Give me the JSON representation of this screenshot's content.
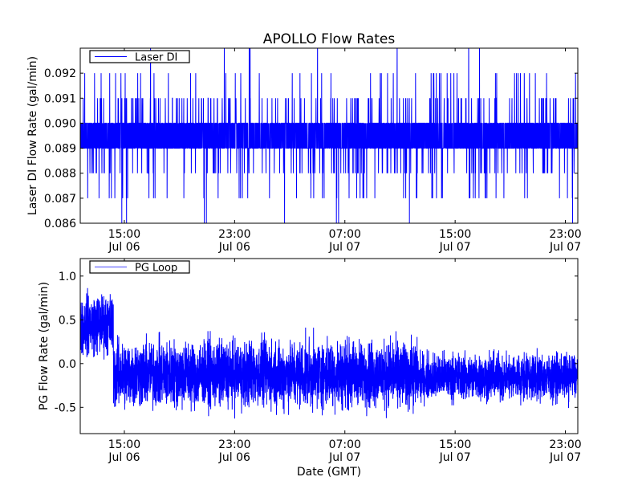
{
  "title": "APOLLO Flow Rates",
  "xlabel": "Date (GMT)",
  "colors": {
    "line": "#0000ff",
    "legend_pg": "#8080ff",
    "frame": "#000000"
  },
  "chart_data": [
    {
      "type": "line",
      "ylabel": "Laser DI Flow Rate (gal/min)",
      "legend": "Laser DI",
      "legend_position": "top-left",
      "ylim": [
        0.086,
        0.093
      ],
      "yticks": [
        0.086,
        0.087,
        0.088,
        0.089,
        0.09,
        0.091,
        0.092
      ],
      "ytick_labels": [
        "0.086",
        "0.087",
        "0.088",
        "0.089",
        "0.090",
        "0.091",
        "0.092"
      ],
      "x_unit": "hours since Jul 06 00:00 GMT",
      "xlim": [
        11.8,
        47.9
      ],
      "xticks": [
        15,
        23,
        31,
        39,
        47
      ],
      "xtick_labels": [
        [
          "15:00",
          "Jul 06"
        ],
        [
          "23:00",
          "Jul 06"
        ],
        [
          "07:00",
          "Jul 07"
        ],
        [
          "15:00",
          "Jul 07"
        ],
        [
          "23:00",
          "Jul 07"
        ]
      ],
      "series_model": {
        "quantum": 0.001,
        "base_levels": [
          0.089,
          0.09
        ],
        "spike_levels": [
          0.086,
          0.087,
          0.088,
          0.091,
          0.092,
          0.093
        ],
        "n_points": 4000
      }
    },
    {
      "type": "line",
      "ylabel": "PG Flow Rate (gal/min)",
      "legend": "PG Loop",
      "legend_position": "top-left",
      "ylim": [
        -0.8,
        1.2
      ],
      "yticks": [
        -0.5,
        0.0,
        0.5,
        1.0
      ],
      "ytick_labels": [
        "-0.5",
        "0.0",
        "0.5",
        "1.0"
      ],
      "x_unit": "hours since Jul 06 00:00 GMT",
      "xlim": [
        11.8,
        47.9
      ],
      "xticks": [
        15,
        23,
        31,
        39,
        47
      ],
      "xtick_labels": [
        [
          "15:00",
          "Jul 06"
        ],
        [
          "23:00",
          "Jul 06"
        ],
        [
          "07:00",
          "Jul 07"
        ],
        [
          "15:00",
          "Jul 07"
        ],
        [
          "23:00",
          "Jul 07"
        ]
      ],
      "series_model": {
        "segments": [
          {
            "from": 11.8,
            "to": 14.2,
            "mean": 0.45,
            "amplitude": 0.5
          },
          {
            "from": 14.2,
            "to": 36.3,
            "mean": -0.12,
            "amplitude": 0.55
          },
          {
            "from": 36.3,
            "to": 47.9,
            "mean": -0.15,
            "amplitude": 0.38
          }
        ],
        "n_points": 5000
      }
    }
  ]
}
